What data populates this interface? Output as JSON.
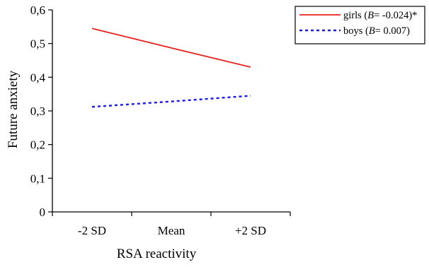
{
  "chart_data": {
    "type": "line",
    "xlabel": "RSA reactivity",
    "ylabel": "Future anxiety",
    "categories": [
      "-2 SD",
      "Mean",
      "+2 SD"
    ],
    "ylim": [
      0,
      0.6
    ],
    "yticks": [
      "0",
      "0,1",
      "0,2",
      "0,3",
      "0,4",
      "0,5",
      "0,6"
    ],
    "grid": false,
    "legend_position": "top-right",
    "series": [
      {
        "name": "girls (B= -0.024)*",
        "legend_prefix": "girls (",
        "legend_italic": "B",
        "legend_suffix": "= -0.024)*",
        "color": "#e8221f",
        "style": "solid",
        "values": [
          0.545,
          0.487,
          0.43
        ]
      },
      {
        "name": "boys (B= 0.007)",
        "legend_prefix": "boys (",
        "legend_italic": "B",
        "legend_suffix": "= 0.007)",
        "color": "#1a1ae6",
        "style": "dotted",
        "values": [
          0.312,
          0.328,
          0.345
        ]
      }
    ]
  }
}
